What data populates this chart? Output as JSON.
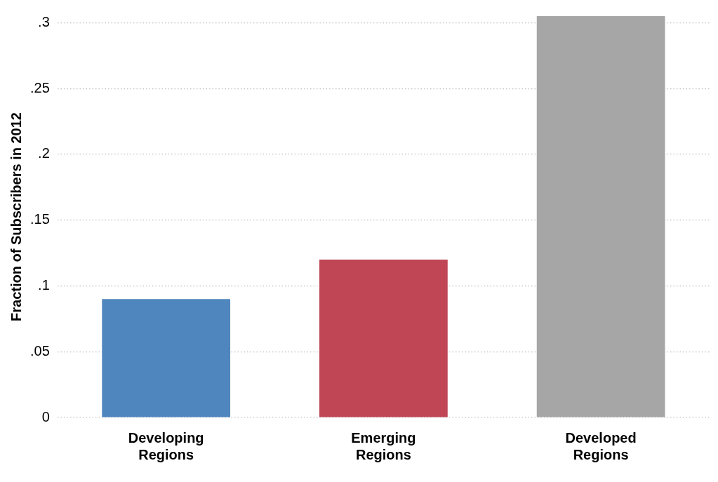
{
  "chart_data": {
    "type": "bar",
    "ylabel": "Fraction of Subscribers in 2012",
    "categories": [
      "Developing Regions",
      "Emerging Regions",
      "Developed Regions"
    ],
    "values": [
      0.09,
      0.12,
      0.305
    ],
    "colors": [
      "#4f86be",
      "#c04656",
      "#a6a6a6"
    ],
    "ylim": [
      0,
      0.305
    ],
    "yticks": [
      {
        "value": 0,
        "label": "0"
      },
      {
        "value": 0.05,
        "label": ".05"
      },
      {
        "value": 0.1,
        "label": ".1"
      },
      {
        "value": 0.15,
        "label": ".15"
      },
      {
        "value": 0.2,
        "label": ".2"
      },
      {
        "value": 0.25,
        "label": ".25"
      },
      {
        "value": 0.3,
        "label": ".3"
      }
    ],
    "grid": "y",
    "legend": false
  }
}
